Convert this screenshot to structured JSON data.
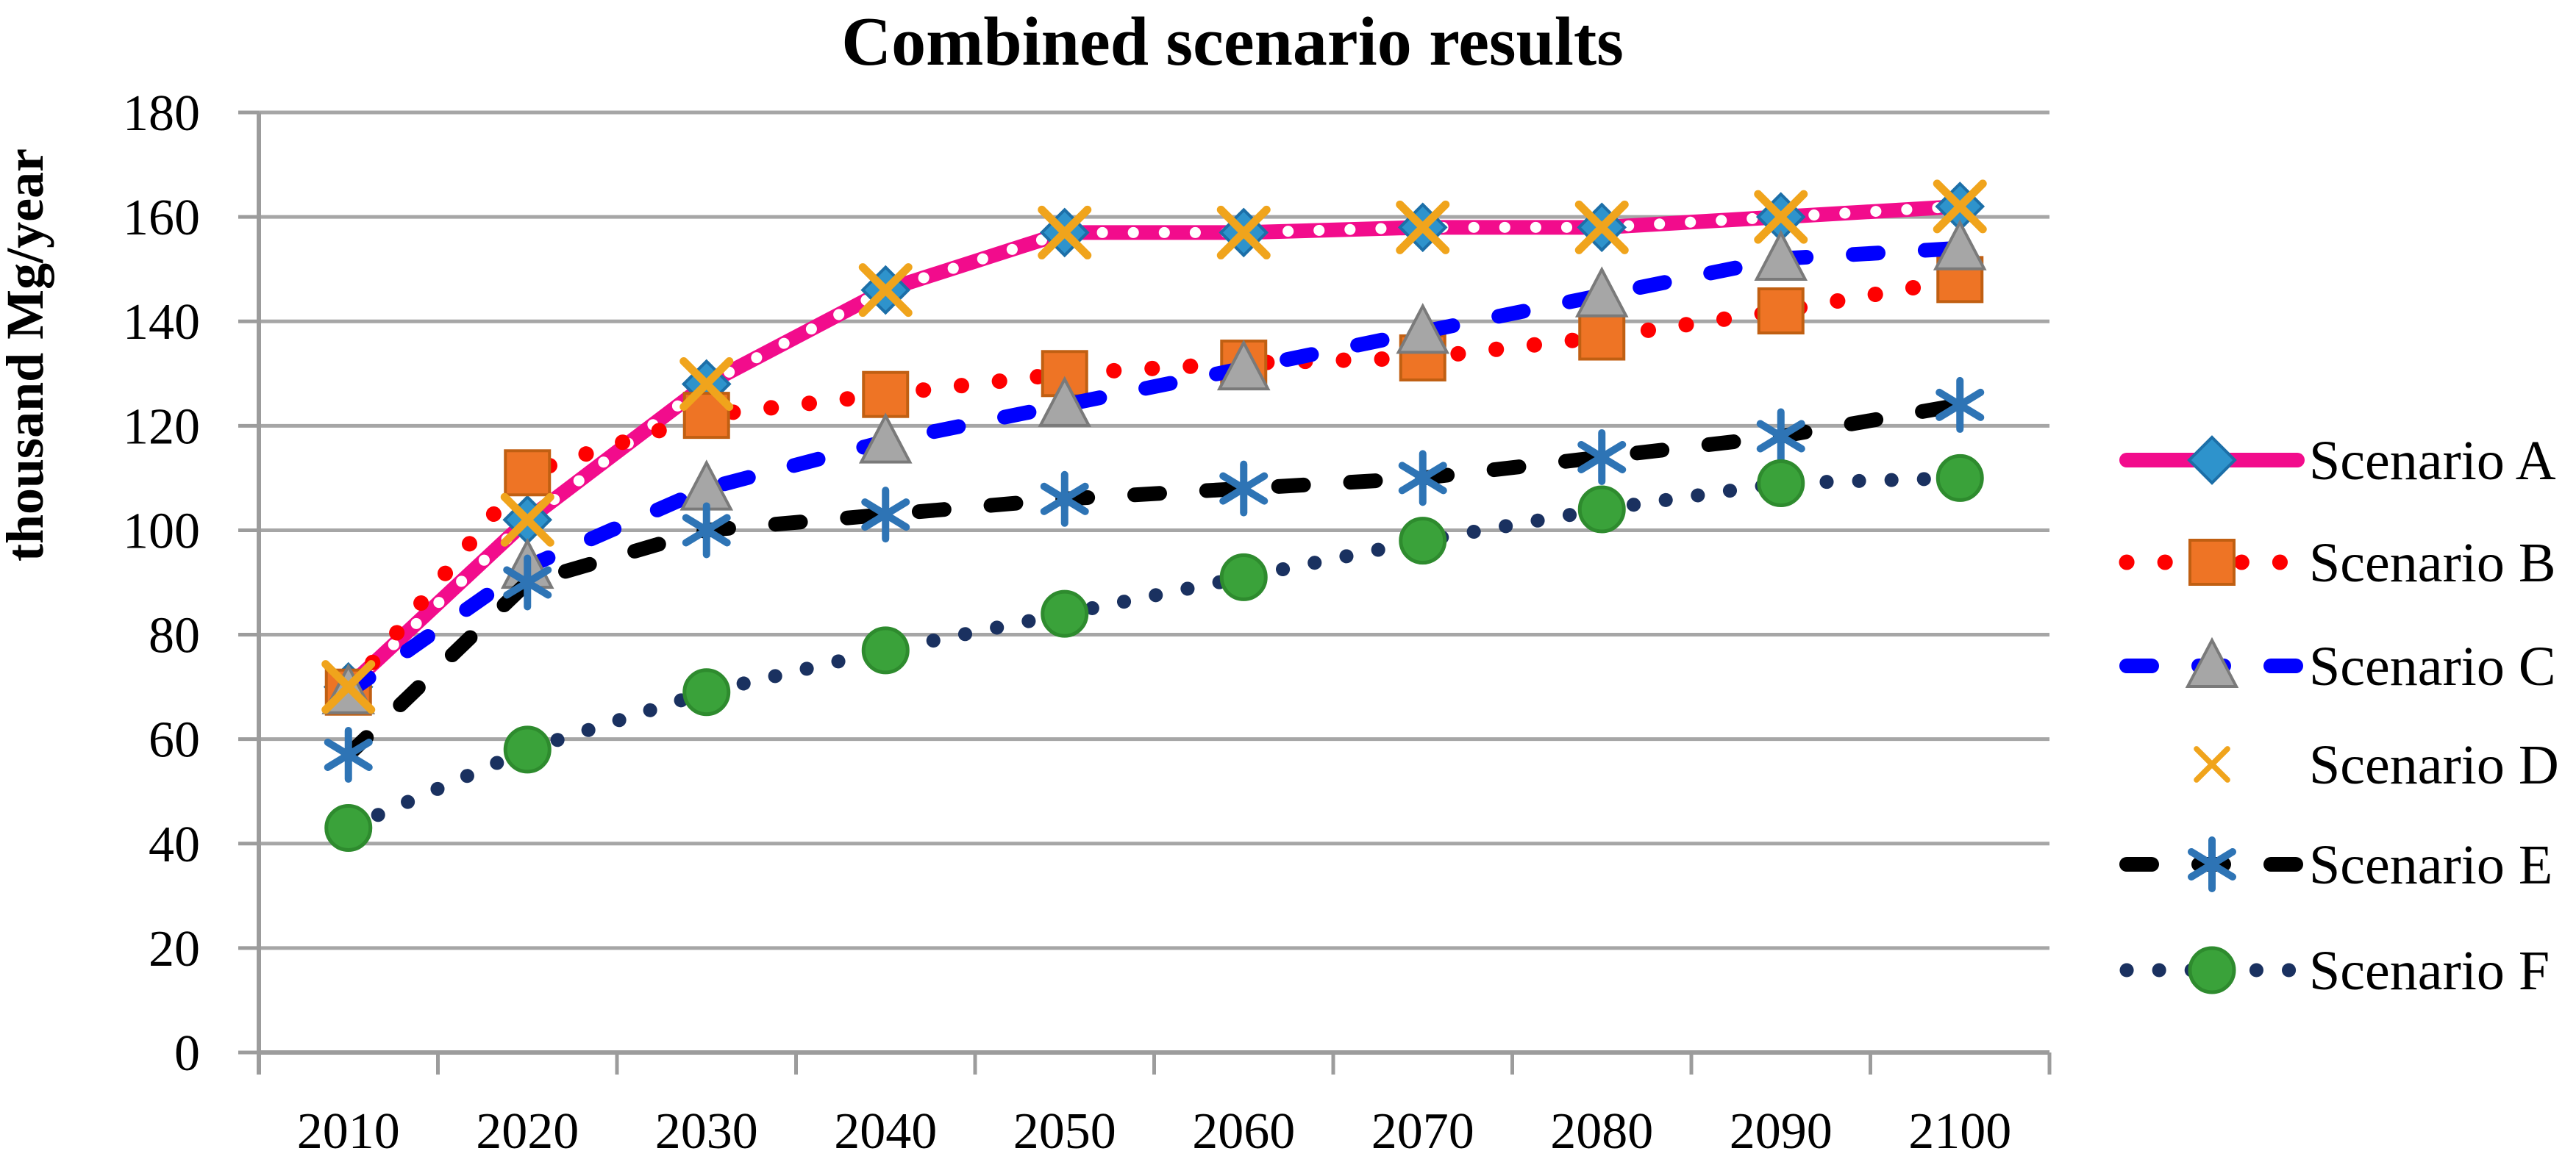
{
  "chart_data": {
    "type": "line",
    "title": "Combined scenario results",
    "ylabel": "thousand Mg/year",
    "xlabel": "",
    "x": [
      2010,
      2020,
      2030,
      2040,
      2050,
      2060,
      2070,
      2080,
      2090,
      2100
    ],
    "ylim": [
      0,
      180
    ],
    "ytick_step": 20,
    "grid": true,
    "legend_position": "right",
    "colors": {
      "gridline": "#A6A6A6",
      "axis": "#9C9C9C",
      "text": "#000000",
      "background": "#FFFFFF"
    },
    "series": [
      {
        "name": "Scenario A",
        "values": [
          70,
          102,
          128,
          146,
          157,
          157,
          158,
          158,
          160,
          162
        ],
        "line": {
          "color": "#F20C8C",
          "width": 20,
          "dash": "solid",
          "overlay_dot_color": "#FFFFFF"
        },
        "marker": {
          "type": "diamond",
          "fill": "#2E93CC",
          "stroke": "#1C6FA8"
        }
      },
      {
        "name": "Scenario B",
        "values": [
          69,
          111,
          122,
          126,
          130,
          132,
          133,
          137,
          142,
          148
        ],
        "line": {
          "color": "#FE0000",
          "width": 21,
          "dash": "dot",
          "dot_gap": 52
        },
        "marker": {
          "type": "square",
          "fill": "#EE7425",
          "stroke": "#C05F12"
        }
      },
      {
        "name": "Scenario C",
        "values": [
          69,
          93,
          108,
          117,
          124,
          131,
          138,
          145,
          152,
          154
        ],
        "line": {
          "color": "#0000FE",
          "width": 20,
          "dash": "dash"
        },
        "marker": {
          "type": "triangle",
          "fill": "#A6A6A6",
          "stroke": "#7A7A7A"
        }
      },
      {
        "name": "Scenario D",
        "values": [
          70,
          102,
          128,
          146,
          157,
          157,
          158,
          158,
          160,
          162
        ],
        "line": null,
        "marker": {
          "type": "x",
          "stroke": "#F0A41C"
        }
      },
      {
        "name": "Scenario E",
        "values": [
          57,
          90,
          100,
          103,
          106,
          108,
          110,
          114,
          118,
          124
        ],
        "line": {
          "color": "#000000",
          "width": 20,
          "dash": "dash"
        },
        "marker": {
          "type": "asterisk",
          "stroke": "#2E74B5"
        }
      },
      {
        "name": "Scenario F",
        "values": [
          43,
          58,
          69,
          77,
          84,
          91,
          98,
          104,
          109,
          110
        ],
        "line": {
          "color": "#1A3160",
          "width": 19,
          "dash": "dot",
          "dot_gap": 44
        },
        "marker": {
          "type": "circle",
          "fill": "#3AA23A",
          "stroke": "#2E8B2E"
        }
      }
    ]
  }
}
